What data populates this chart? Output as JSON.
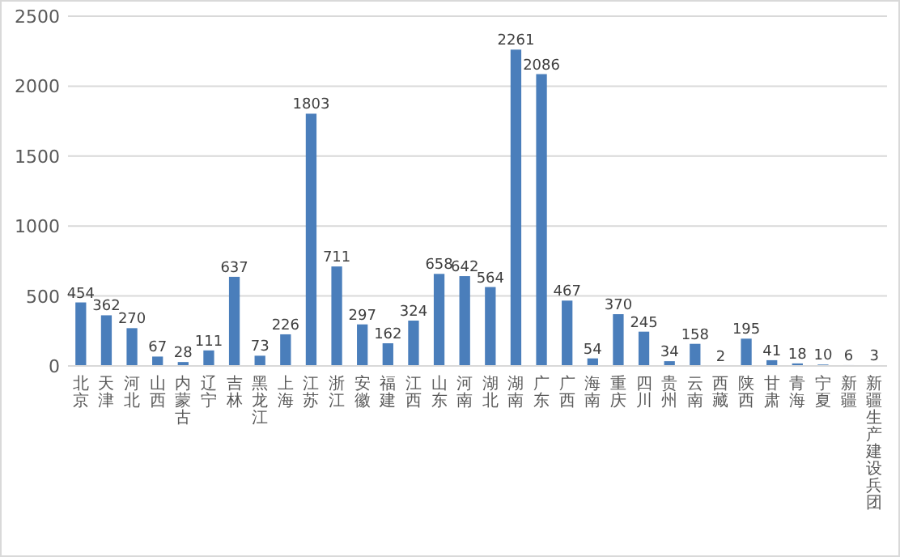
{
  "chart_data": {
    "type": "bar",
    "categories": [
      "北京",
      "天津",
      "河北",
      "山西",
      "内蒙古",
      "辽宁",
      "吉林",
      "黑龙江",
      "上海",
      "江苏",
      "浙江",
      "安徽",
      "福建",
      "江西",
      "山东",
      "河南",
      "湖北",
      "湖南",
      "广东",
      "广西",
      "海南",
      "重庆",
      "四川",
      "贵州",
      "云南",
      "西藏",
      "陕西",
      "甘肃",
      "青海",
      "宁夏",
      "新疆",
      "新疆生产建设兵团"
    ],
    "values": [
      454,
      362,
      270,
      67,
      28,
      111,
      637,
      73,
      226,
      1803,
      711,
      297,
      162,
      324,
      658,
      642,
      564,
      2261,
      2086,
      467,
      54,
      370,
      245,
      34,
      158,
      2,
      195,
      41,
      18,
      10,
      6,
      3
    ],
    "color": "#4a7ebb",
    "ylim": [
      0,
      2500
    ],
    "yticks": [
      0,
      500,
      1000,
      1500,
      2000,
      2500
    ],
    "grid": "y",
    "data_labels": true
  }
}
